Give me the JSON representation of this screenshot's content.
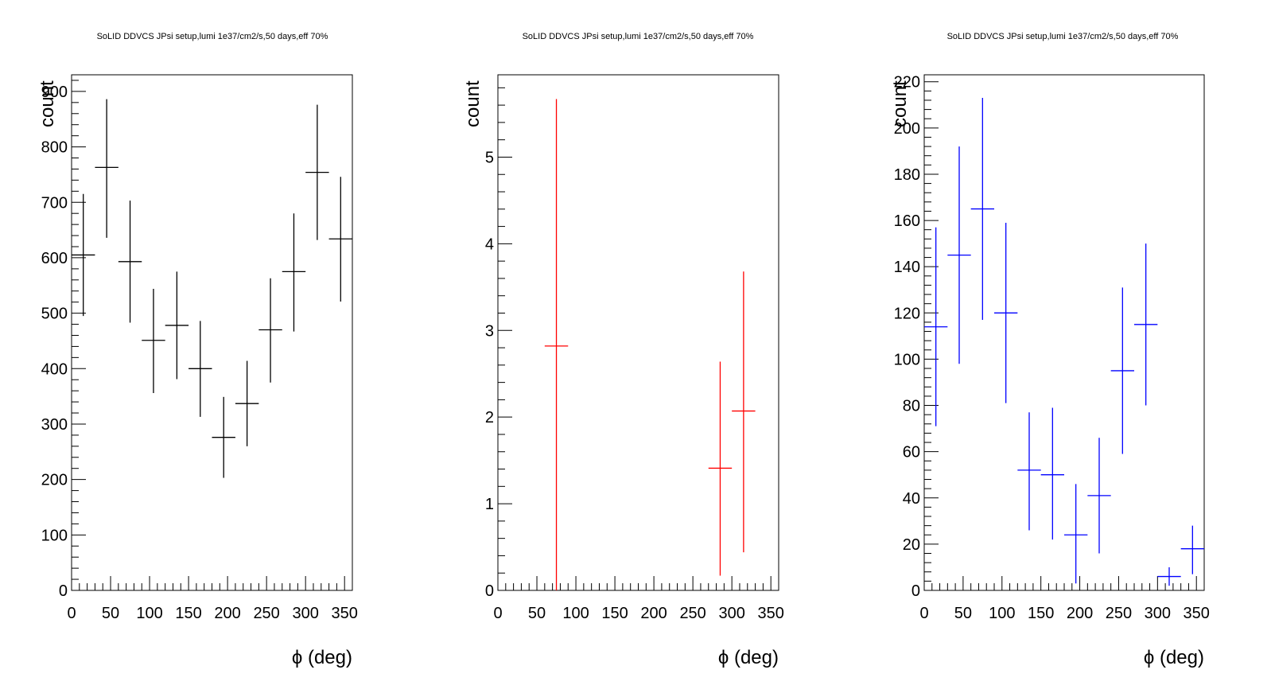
{
  "chart_data": [
    {
      "type": "scatter",
      "title": "SoLID DDVCS JPsi setup,lumi 1e37/cm2/s,50 days,eff 70%",
      "xlabel": "ϕ (deg)",
      "ylabel": "count",
      "xlim": [
        0,
        360
      ],
      "ylim": [
        0,
        930
      ],
      "color": "#000000",
      "xticks": [
        0,
        50,
        100,
        150,
        200,
        250,
        300,
        350
      ],
      "yticks": [
        0,
        100,
        200,
        300,
        400,
        500,
        600,
        700,
        800,
        900
      ],
      "x": [
        15,
        45,
        75,
        105,
        135,
        165,
        195,
        225,
        255,
        285,
        315,
        345
      ],
      "values": [
        605,
        763,
        593,
        451,
        478,
        400,
        276,
        337,
        470,
        575,
        754,
        634
      ],
      "err_low": [
        110,
        127,
        110,
        95,
        97,
        87,
        73,
        77,
        95,
        108,
        122,
        113
      ],
      "err_high": [
        110,
        123,
        110,
        93,
        97,
        86,
        73,
        77,
        93,
        105,
        122,
        112
      ],
      "bin_halfwidth": 15
    },
    {
      "type": "scatter",
      "title": "SoLID DDVCS JPsi setup,lumi 1e37/cm2/s,50 days,eff 70%",
      "xlabel": "ϕ (deg)",
      "ylabel": "count",
      "xlim": [
        0,
        360
      ],
      "ylim": [
        0,
        5.95
      ],
      "color": "#ff0000",
      "xticks": [
        0,
        50,
        100,
        150,
        200,
        250,
        300,
        350
      ],
      "yticks": [
        0,
        1,
        2,
        3,
        4,
        5
      ],
      "x": [
        75,
        285,
        315
      ],
      "values": [
        2.82,
        1.41,
        2.07
      ],
      "err_low": [
        2.82,
        1.24,
        1.63
      ],
      "err_high": [
        2.85,
        1.23,
        1.61
      ],
      "bin_halfwidth": 15
    },
    {
      "type": "scatter",
      "title": "SoLID DDVCS JPsi setup,lumi 1e37/cm2/s,50 days,eff 70%",
      "xlabel": "ϕ (deg)",
      "ylabel": "count",
      "xlim": [
        0,
        360
      ],
      "ylim": [
        0,
        223
      ],
      "color": "#0000ff",
      "xticks": [
        0,
        50,
        100,
        150,
        200,
        250,
        300,
        350
      ],
      "yticks": [
        0,
        20,
        40,
        60,
        80,
        100,
        120,
        140,
        160,
        180,
        200,
        220
      ],
      "x": [
        15,
        45,
        75,
        105,
        135,
        165,
        195,
        225,
        255,
        285,
        315,
        345
      ],
      "values": [
        114,
        145,
        165,
        120,
        52,
        50,
        24,
        41,
        95,
        115,
        6,
        18
      ],
      "err_low": [
        43,
        47,
        48,
        39,
        26,
        28,
        21,
        25,
        36,
        35,
        4,
        11
      ],
      "err_high": [
        43,
        47,
        48,
        39,
        25,
        29,
        22,
        25,
        36,
        35,
        4,
        10
      ],
      "bin_halfwidth": 15
    }
  ]
}
